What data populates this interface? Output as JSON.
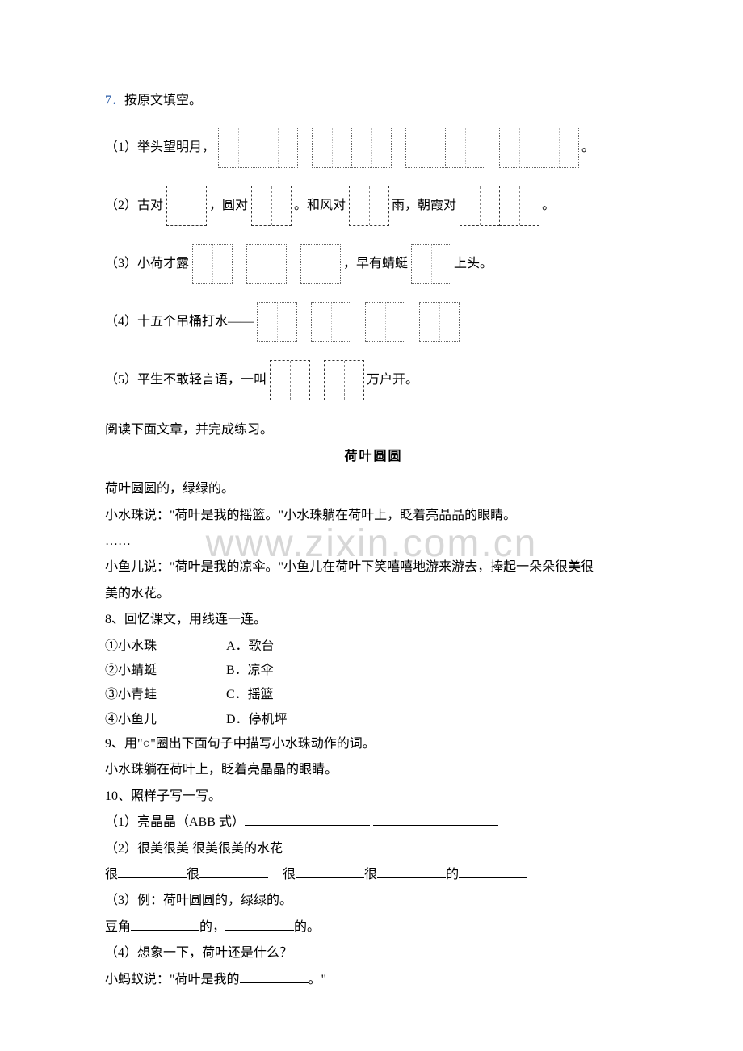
{
  "q7": {
    "num": "7．",
    "title": "按原文填空。",
    "items": [
      {
        "pre": "（1）举头望明月，",
        "groups": [
          [
            "dotted",
            "dotted"
          ],
          [
            "dotted",
            "dotted"
          ],
          [
            "dotted",
            "dotted"
          ],
          [
            "dotted",
            "dotted"
          ]
        ],
        "post": "。"
      },
      {
        "pre": "（2）古对",
        "groups": [
          [
            "dashed"
          ]
        ],
        "mid1": "，圆对",
        "groups2": [
          [
            "dashed"
          ]
        ],
        "mid2": "。和风对",
        "groups3": [
          [
            "dashed"
          ]
        ],
        "mid3": "雨，朝霞对",
        "groups4": [
          [
            "dashed",
            "dashed"
          ]
        ],
        "post": "。"
      },
      {
        "pre": "（3）小荷才露",
        "groups": [
          [
            "dotted"
          ],
          [
            "dotted"
          ],
          [
            "dotted"
          ]
        ],
        "mid1": "，早有蜻蜓",
        "groups2": [
          [
            "dotted"
          ]
        ],
        "post": "上头。"
      },
      {
        "pre": "（4）十五个吊桶打水——",
        "groups": [
          [
            "dotted"
          ],
          [
            "dotted"
          ],
          [
            "dotted"
          ],
          [
            "dotted"
          ]
        ],
        "post": ""
      },
      {
        "pre": "（5）平生不敢轻言语，一叫",
        "groups": [
          [
            "dashed"
          ],
          [
            "dashed"
          ]
        ],
        "post": "万户开。"
      }
    ]
  },
  "reading": {
    "instr": "阅读下面文章，并完成练习。",
    "title": "荷叶圆圆",
    "p1": "荷叶圆圆的，绿绿的。",
    "p2": "小水珠说：\"荷叶是我的摇篮。\"小水珠躺在荷叶上，眨着亮晶晶的眼睛。",
    "p3": "……",
    "p4a": "小鱼儿说：\"荷叶是我的凉伞。\"小鱼儿在荷叶下笑嘻嘻地游来游去，捧起一朵朵很美很",
    "p4b": "美的水花。"
  },
  "q8": {
    "title": "8、回忆课文，用线连一连。",
    "rows": [
      {
        "l": "①小水珠",
        "r": "A．歌台"
      },
      {
        "l": "②小蜻蜓",
        "r": "B．凉伞"
      },
      {
        "l": "③小青蛙",
        "r": "C．摇篮"
      },
      {
        "l": "④小鱼儿",
        "r": "D．停机坪"
      }
    ]
  },
  "q9": {
    "title": "9、用\"○\"圈出下面句子中描写小水珠动作的词。",
    "sentence": "小水珠躺在荷叶上，眨着亮晶晶的眼睛。"
  },
  "q10": {
    "title": "10、照样子写一写。",
    "l1": "（1）亮晶晶（ABB 式）",
    "l2": "（2）很美很美   很美很美的水花",
    "l3a": "很",
    "l3b": "很",
    "l3c": "很",
    "l3d": "很",
    "l3e": "的",
    "l4": "（3）例：荷叶圆圆的，绿绿的。",
    "l5a": "豆角",
    "l5b": "的，",
    "l5c": "的。",
    "l6": "（4）想象一下，荷叶还是什么？",
    "l7a": "小蚂蚁说：\"荷叶是我的",
    "l7b": "。\""
  },
  "watermark": "www.zixin.com.cn"
}
